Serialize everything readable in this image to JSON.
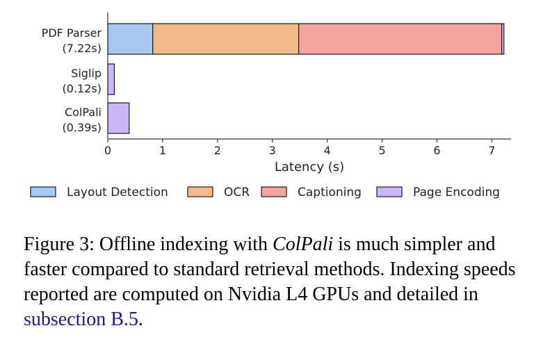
{
  "chart_data": {
    "type": "bar",
    "orientation": "horizontal",
    "stacked": true,
    "categories": [
      {
        "name": "PDF Parser",
        "time_label": "(7.22s)"
      },
      {
        "name": "Siglip",
        "time_label": "(0.12s)"
      },
      {
        "name": "ColPali",
        "time_label": "(0.39s)"
      }
    ],
    "series": [
      {
        "name": "Layout Detection",
        "color": "#a9c8ef",
        "values": [
          0.82,
          0,
          0
        ]
      },
      {
        "name": "OCR",
        "color": "#f3bb8a",
        "values": [
          2.66,
          0,
          0
        ]
      },
      {
        "name": "Captioning",
        "color": "#f4a3a1",
        "values": [
          3.7,
          0,
          0
        ]
      },
      {
        "name": "Page Encoding",
        "color": "#c9b8f5",
        "values": [
          0.04,
          0.12,
          0.39
        ]
      }
    ],
    "xlabel": "Latency (s)",
    "xticks": [
      0,
      1,
      2,
      3,
      4,
      5,
      6,
      7
    ],
    "xlim": [
      0,
      7.35
    ],
    "grid": false,
    "legend_position": "bottom"
  },
  "caption": {
    "figure_label": "Figure 3:",
    "text_before": "Offline indexing with",
    "model_name": "ColPali",
    "text_after": "is much simpler and faster compared to standard retrieval methods. Indexing speeds reported are computed on Nvidia L4 GPUs and detailed in",
    "reference": "subsection B.5",
    "end": "."
  }
}
